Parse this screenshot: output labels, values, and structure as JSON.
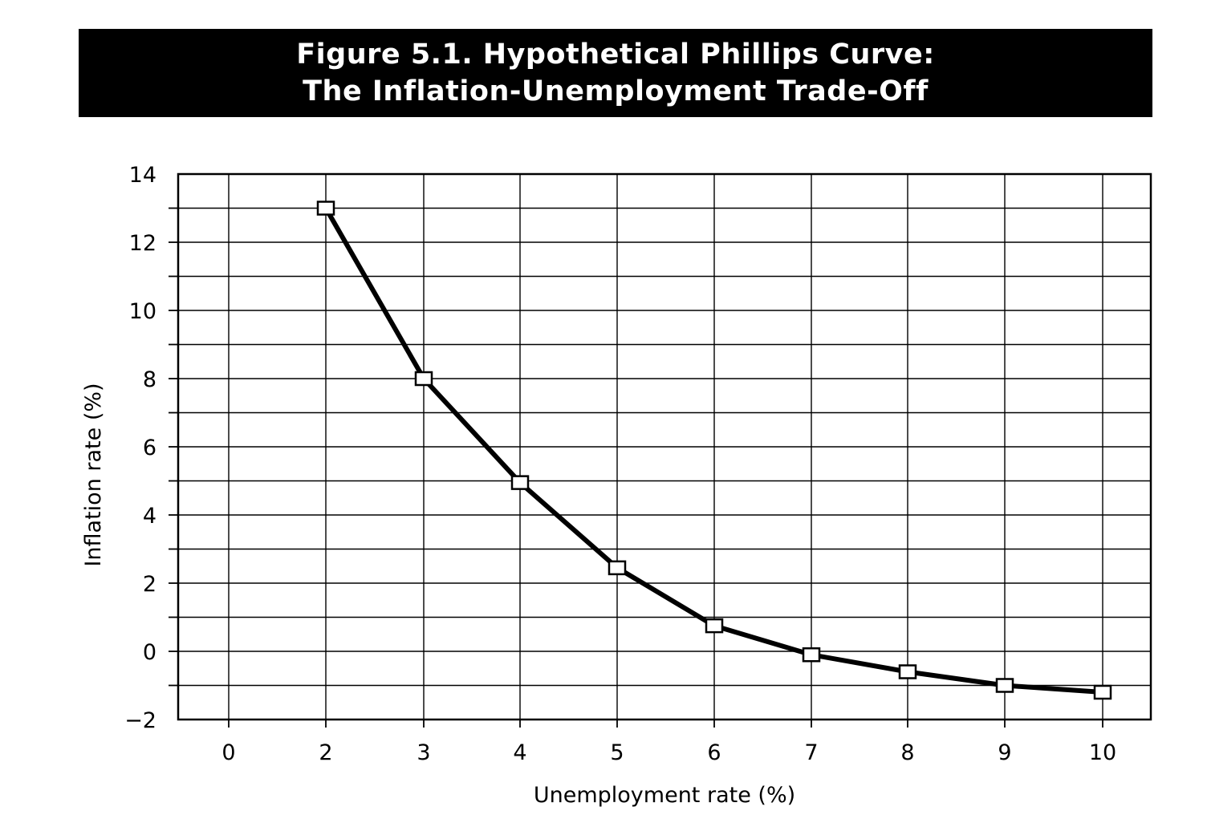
{
  "chart_data": {
    "type": "line",
    "title_line1": "Figure 5.1. Hypothetical Phillips Curve:",
    "title_line2": "The Inflation-Unemployment Trade-Off",
    "xlabel": "Unemployment rate (%)",
    "ylabel": "Inflation rate (%)",
    "x_tick_labels": [
      "0",
      "2",
      "3",
      "4",
      "5",
      "6",
      "7",
      "8",
      "9",
      "10"
    ],
    "y_ticks": [
      14,
      12,
      10,
      8,
      6,
      4,
      2,
      0,
      -2
    ],
    "y_tick_labels": [
      "14",
      "12",
      "10",
      "8",
      "6",
      "4",
      "2",
      "0",
      "−2"
    ],
    "ylim": [
      -2,
      14
    ],
    "grid": true,
    "marker": "open-square",
    "series": [
      {
        "x": [
          "2",
          "3",
          "4",
          "5",
          "6",
          "7",
          "8",
          "9",
          "10"
        ],
        "values": [
          13.0,
          8.0,
          4.95,
          2.45,
          0.75,
          -0.1,
          -0.6,
          -1.0,
          -1.2
        ]
      }
    ]
  }
}
